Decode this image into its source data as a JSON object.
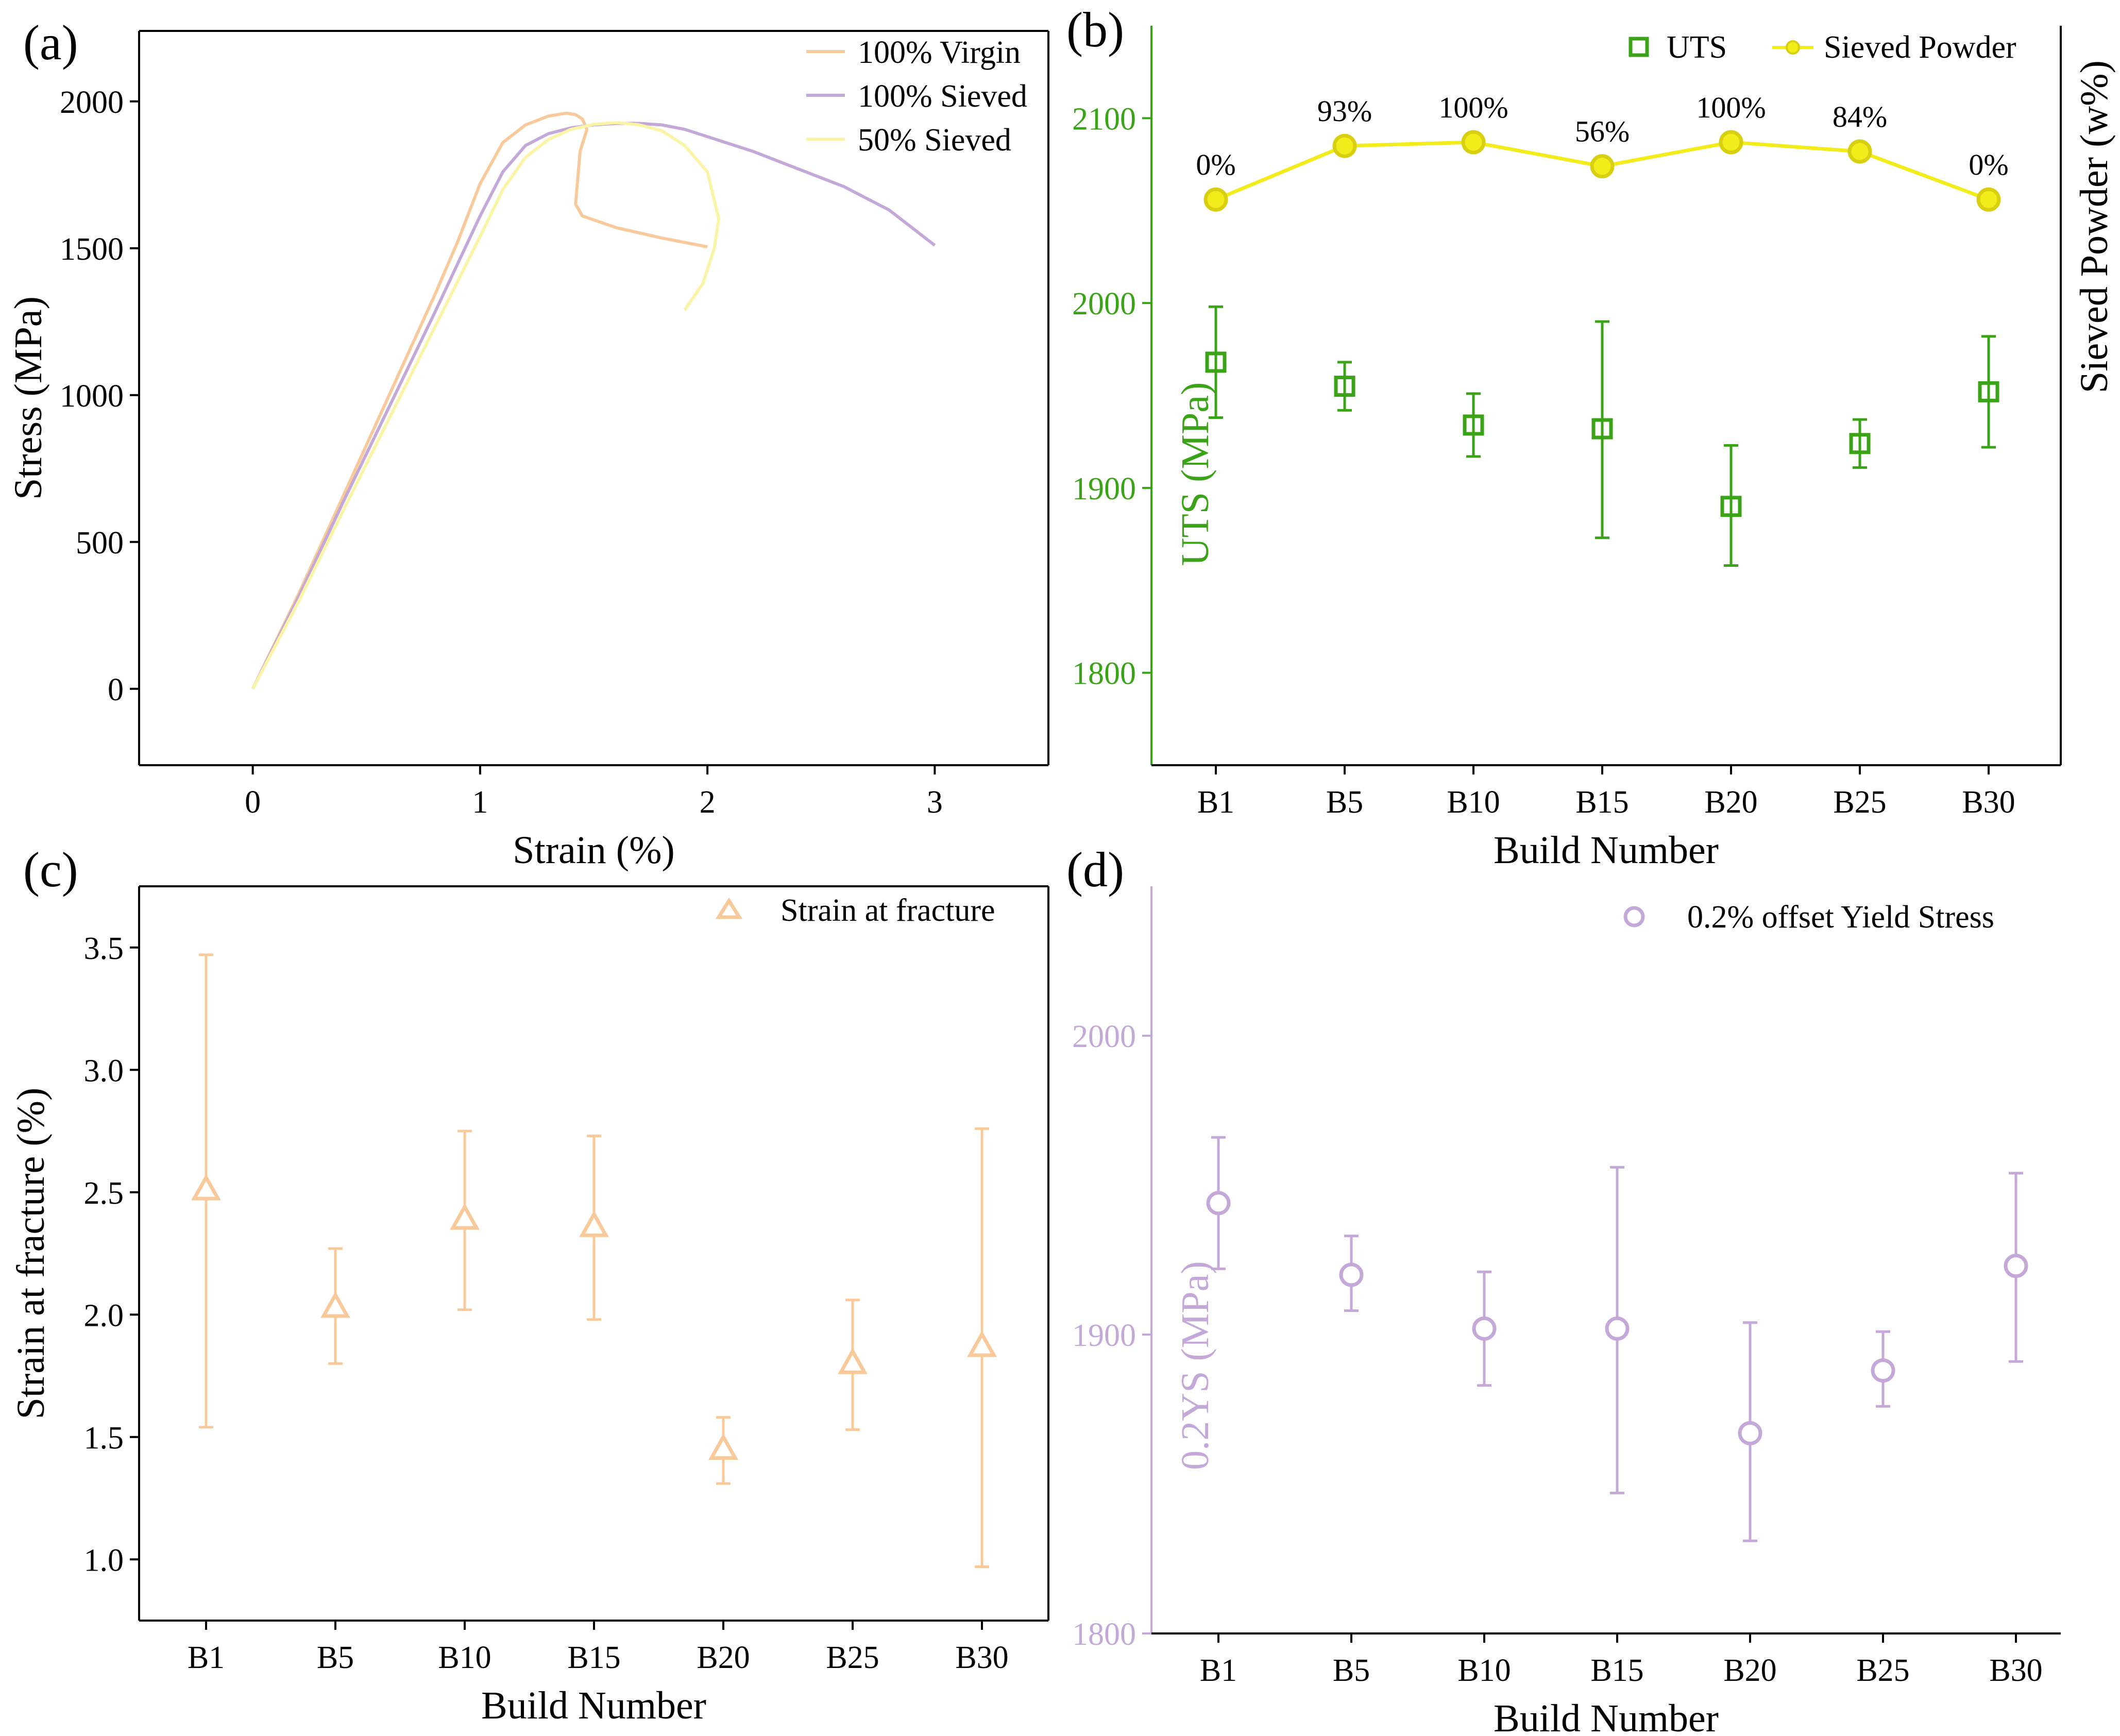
{
  "figure": {
    "panels": [
      {
        "id": "a",
        "label": "(a)"
      },
      {
        "id": "b",
        "label": "(b)"
      },
      {
        "id": "c",
        "label": "(c)"
      },
      {
        "id": "d",
        "label": "(d)"
      }
    ]
  },
  "chart_data": [
    {
      "panel": "a",
      "type": "line",
      "label": "(a)",
      "xlabel": "Strain (%)",
      "ylabel": "Stress (MPa)",
      "xlim": [
        -0.5,
        3.5
      ],
      "ylim": [
        -260,
        2240
      ],
      "xticks": [
        0,
        1,
        2,
        3
      ],
      "yticks": [
        0,
        500,
        1000,
        1500,
        2000
      ],
      "legend_position": "top-right",
      "series": [
        {
          "name": "100% Virgin",
          "color": "#f8c99a",
          "x": [
            0,
            0.2,
            0.4,
            0.6,
            0.8,
            0.9,
            1.0,
            1.1,
            1.2,
            1.3,
            1.38,
            1.42,
            1.45,
            1.47,
            1.44,
            1.42,
            1.45,
            1.6,
            1.8,
            2.0
          ],
          "y": [
            0,
            320,
            660,
            1000,
            1340,
            1520,
            1720,
            1860,
            1920,
            1950,
            1960,
            1955,
            1940,
            1905,
            1830,
            1650,
            1610,
            1570,
            1535,
            1505
          ]
        },
        {
          "name": "100% Sieved",
          "color": "#c3a8d8",
          "x": [
            0,
            0.2,
            0.4,
            0.6,
            0.8,
            1.0,
            1.1,
            1.2,
            1.3,
            1.4,
            1.5,
            1.6,
            1.7,
            1.8,
            1.9,
            2.0,
            2.2,
            2.4,
            2.6,
            2.8,
            3.0
          ],
          "y": [
            0,
            310,
            640,
            960,
            1280,
            1610,
            1760,
            1850,
            1890,
            1910,
            1920,
            1925,
            1925,
            1920,
            1905,
            1880,
            1830,
            1770,
            1710,
            1630,
            1510
          ]
        },
        {
          "name": "50% Sieved",
          "color": "#f9f4a6",
          "x": [
            0,
            0.2,
            0.4,
            0.6,
            0.8,
            1.0,
            1.1,
            1.2,
            1.3,
            1.4,
            1.5,
            1.6,
            1.7,
            1.8,
            1.9,
            2.0,
            2.05,
            2.03,
            1.98,
            1.9
          ],
          "y": [
            0,
            295,
            610,
            920,
            1230,
            1540,
            1700,
            1810,
            1870,
            1905,
            1922,
            1928,
            1920,
            1900,
            1850,
            1760,
            1600,
            1500,
            1380,
            1290
          ]
        }
      ]
    },
    {
      "panel": "b",
      "type": "scatter",
      "label": "(b)",
      "xlabel": "Build Number",
      "ylabel": "UTS (MPa)",
      "ylabel_right": "Sieved Powder (w%)",
      "categories": [
        "B1",
        "B5",
        "B10",
        "B15",
        "B20",
        "B25",
        "B30"
      ],
      "ylim": [
        1750,
        2150
      ],
      "yticks": [
        1800,
        1900,
        2000,
        2100
      ],
      "legend_position": "top",
      "series": [
        {
          "name": "UTS",
          "color": "#3aa317",
          "marker": "square",
          "values": [
            1968,
            1955,
            1934,
            1932,
            1890,
            1924,
            1952
          ],
          "err_low": [
            1938,
            1942,
            1917,
            1873,
            1858,
            1911,
            1922
          ],
          "err_high": [
            1998,
            1968,
            1951,
            1990,
            1923,
            1937,
            1982
          ]
        },
        {
          "name": "Sieved Powder",
          "color": "#f2ec1a",
          "marker": "circle",
          "values": [
            2056,
            2085,
            2087,
            2074,
            2087,
            2082,
            2056
          ],
          "data_labels": [
            "0%",
            "93%",
            "100%",
            "56%",
            "100%",
            "84%",
            "0%"
          ]
        }
      ]
    },
    {
      "panel": "c",
      "type": "scatter",
      "label": "(c)",
      "xlabel": "Build Number",
      "ylabel": "Strain at fracture (%)",
      "categories": [
        "B1",
        "B5",
        "B10",
        "B15",
        "B20",
        "B25",
        "B30"
      ],
      "ylim": [
        0.75,
        3.75
      ],
      "yticks": [
        1.0,
        1.5,
        2.0,
        2.5,
        3.0,
        3.5
      ],
      "legend_position": "top-right",
      "series": [
        {
          "name": "Strain at fracture",
          "color": "#f8c99a",
          "marker": "triangle",
          "values": [
            2.51,
            2.03,
            2.39,
            2.36,
            1.45,
            1.8,
            1.87
          ],
          "err_low": [
            1.54,
            1.8,
            2.02,
            1.98,
            1.31,
            1.53,
            0.97
          ],
          "err_high": [
            3.47,
            2.27,
            2.75,
            2.73,
            1.58,
            2.06,
            2.76
          ]
        }
      ]
    },
    {
      "panel": "d",
      "type": "scatter",
      "label": "(d)",
      "xlabel": "Build Number",
      "ylabel": "0.2YS (MPa)",
      "categories": [
        "B1",
        "B5",
        "B10",
        "B15",
        "B20",
        "B25",
        "B30"
      ],
      "ylim": [
        1800,
        2050
      ],
      "yticks": [
        1800,
        1900,
        2000
      ],
      "legend_position": "top-right",
      "series": [
        {
          "name": "0.2% offset Yield Stress",
          "color": "#c3a8d8",
          "marker": "circle",
          "values": [
            1944,
            1920,
            1902,
            1902,
            1867,
            1888,
            1923
          ],
          "err_low": [
            1922,
            1908,
            1883,
            1847,
            1831,
            1876,
            1891
          ],
          "err_high": [
            1966,
            1933,
            1921,
            1956,
            1904,
            1901,
            1954
          ]
        }
      ]
    }
  ]
}
